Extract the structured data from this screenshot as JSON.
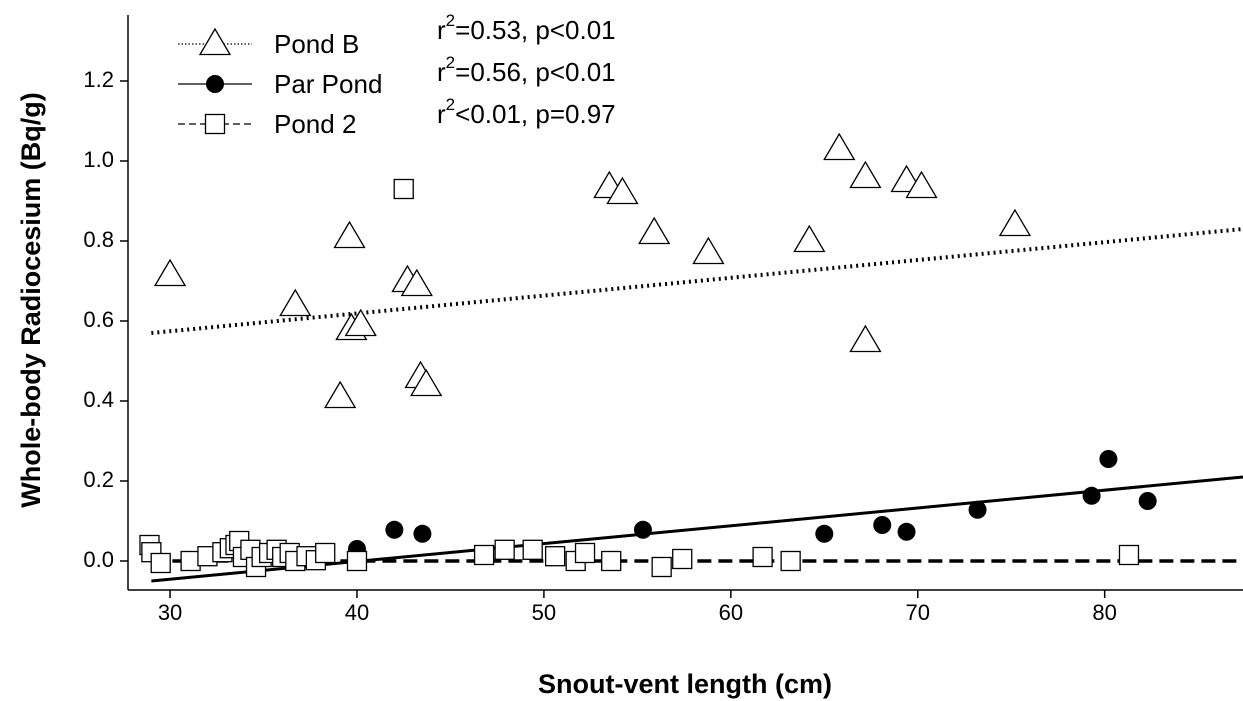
{
  "chart_data": {
    "type": "scatter",
    "x_label": "Snout-vent length (cm)",
    "y_label": "Whole-body Radiocesium (Bq/g)",
    "xlim": [
      27.75,
      87.4
    ],
    "ylim": [
      -0.0725,
      1.365
    ],
    "xticks": [
      30,
      40,
      50,
      60,
      70,
      80
    ],
    "yticks": [
      {
        "value": 0,
        "label": "0.0"
      },
      0.2,
      0.4,
      0.6,
      0.8,
      {
        "value": 1,
        "label": "1.0"
      },
      1.2
    ],
    "legend": "top-left",
    "annotations": [
      {
        "base": "r",
        "sup": "2",
        "rest": "=0.53, p<0.01"
      },
      {
        "base": "r",
        "sup": "2",
        "rest": "=0.56, p<0.01"
      },
      {
        "base": "r",
        "sup": "2",
        "rest": "<0.01, p=0.97"
      }
    ],
    "series": [
      {
        "name": "Pond B",
        "color": "#000000",
        "marker": "triangle-open",
        "linestyle": "dotted",
        "x": [
          30.0,
          36.7,
          39.6,
          39.7,
          40.2,
          39.1,
          42.7,
          43.2,
          43.4,
          43.7,
          53.5,
          54.2,
          55.9,
          58.8,
          64.2,
          65.8,
          67.2,
          67.2,
          69.4,
          70.2,
          75.2
        ],
        "y": [
          0.715,
          0.64,
          0.81,
          0.58,
          0.59,
          0.41,
          0.7,
          0.69,
          0.46,
          0.44,
          0.935,
          0.92,
          0.82,
          0.77,
          0.8,
          1.03,
          0.96,
          0.55,
          0.95,
          0.935,
          0.84
        ],
        "fit": {
          "x": [
            29,
            87.4
          ],
          "y": [
            0.57,
            0.83
          ]
        }
      },
      {
        "name": "Par Pond",
        "color": "#000000",
        "marker": "circle-filled",
        "linestyle": "solid",
        "x": [
          40.0,
          42.0,
          43.5,
          55.3,
          65.0,
          68.1,
          69.4,
          73.2,
          79.3,
          80.2,
          82.3
        ],
        "y": [
          0.03,
          0.078,
          0.068,
          0.078,
          0.068,
          0.09,
          0.073,
          0.128,
          0.163,
          0.255,
          0.15
        ],
        "fit": {
          "x": [
            29,
            87.4
          ],
          "y": [
            -0.05,
            0.21
          ]
        }
      },
      {
        "name": "Pond 2",
        "color": "#000000",
        "marker": "square-open",
        "linestyle": "dashed",
        "x": [
          28.9,
          29.0,
          29.5,
          31.1,
          32.0,
          32.8,
          33.2,
          33.5,
          33.7,
          33.9,
          34.3,
          34.6,
          34.9,
          35.3,
          35.7,
          36.0,
          36.4,
          36.7,
          37.3,
          37.8,
          38.3,
          40.0,
          42.5,
          46.8,
          47.9,
          49.4,
          50.6,
          51.7,
          52.2,
          53.6,
          56.3,
          57.4,
          61.7,
          63.2,
          81.3
        ],
        "y": [
          0.04,
          0.022,
          -0.005,
          0,
          0.012,
          0.022,
          0.032,
          0.04,
          0.05,
          0.01,
          0.028,
          -0.015,
          0.01,
          0.02,
          0.028,
          0.01,
          0.02,
          0,
          0.012,
          0.002,
          0.02,
          0,
          0.93,
          0.015,
          0.028,
          0.028,
          0.012,
          0,
          0.02,
          0,
          -0.015,
          0.005,
          0.01,
          0,
          0.015
        ],
        "fit": {
          "x": [
            29,
            87.4
          ],
          "y": [
            0,
            0
          ]
        }
      }
    ]
  }
}
